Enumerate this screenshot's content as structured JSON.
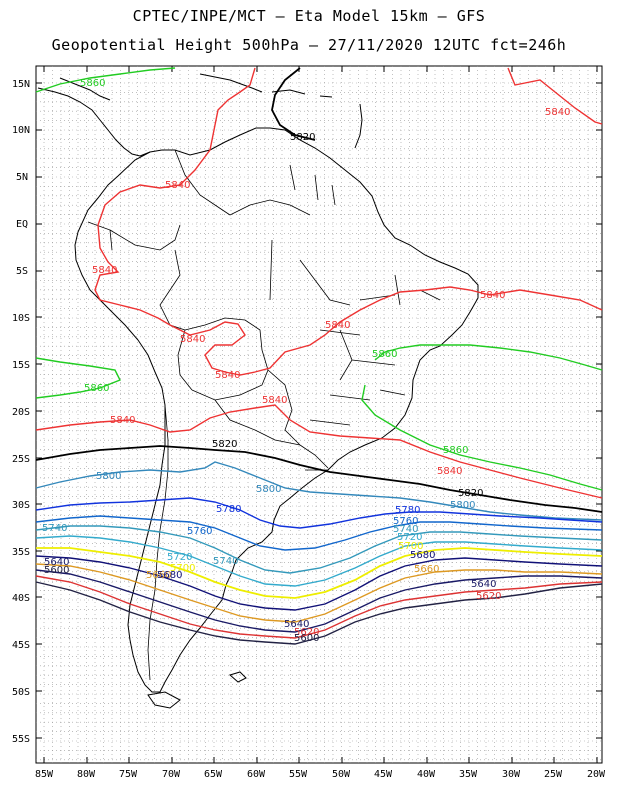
{
  "title_line1": "CPTEC/INPE/MCT –  Eta Model 15km – GFS",
  "title_line2": "Geopotential Height 500hPa – 27/11/2020 12UTC fct=246h",
  "lat_labels": [
    "15N",
    "10N",
    "5N",
    "EQ",
    "5S",
    "10S",
    "15S",
    "20S",
    "25S",
    "30S",
    "35S",
    "40S",
    "45S",
    "50S",
    "55S"
  ],
  "lon_labels": [
    "85W",
    "80W",
    "75W",
    "70W",
    "65W",
    "60W",
    "55W",
    "50W",
    "45W",
    "40W",
    "35W",
    "30W",
    "25W",
    "20W"
  ],
  "contours": [
    {
      "value": "5860",
      "color": "#22cc22"
    },
    {
      "value": "5840",
      "color": "#ee3333"
    },
    {
      "value": "5820",
      "color": "#000000"
    },
    {
      "value": "5800",
      "color": "#3388bb"
    },
    {
      "value": "5780",
      "color": "#1133dd"
    },
    {
      "value": "5760",
      "color": "#1166cc"
    },
    {
      "value": "5740",
      "color": "#3399bb"
    },
    {
      "value": "5720",
      "color": "#33aacc"
    },
    {
      "value": "5700",
      "color": "#eeee00"
    },
    {
      "value": "5680",
      "color": "#111177"
    },
    {
      "value": "5660",
      "color": "#dd9922"
    },
    {
      "value": "5640",
      "color": "#1a1a66"
    },
    {
      "value": "5620",
      "color": "#dd3333"
    },
    {
      "value": "5600",
      "color": "#222244"
    }
  ],
  "contour_labels": {
    "l5860_top": "5860",
    "l5840_ne": "5840",
    "l5820_n": "5820",
    "l5840_col": "5840",
    "l5840_peru": "5840",
    "l5840_east": "5840",
    "l5840_br1": "5840",
    "l5840_bol": "5840",
    "l5840_par": "5840",
    "l5840_br2": "5840",
    "l5840_chile": "5840",
    "l5860_brazil": "5860",
    "l5860_west": "5860",
    "l5860_east": "5860",
    "l5840_se": "5840",
    "l5820_arg": "5820",
    "l5820_e": "5820",
    "l5800_w": "5800",
    "l5800_m": "5800",
    "l5800_e": "5800",
    "l5780_m": "5780",
    "l5780_e": "5780",
    "l5760_m": "5760",
    "l5760_e": "5760",
    "l5740_w": "5740",
    "l5740_m": "5740",
    "l5740_e": "5740",
    "l5720_m": "5720",
    "l5720_e": "5720",
    "l5700_m": "5700",
    "l5700_e": "5700",
    "l5680_e": "5680",
    "l5660_e": "5660",
    "l5640_w": "5640",
    "l5640_e": "5640",
    "l5640_s": "5640",
    "l5620_e": "5620",
    "l5620_s": "5620",
    "l5600_s": "5600",
    "l5600_w": "5600",
    "l5660_w": "5660",
    "l5680_w": "5680"
  }
}
